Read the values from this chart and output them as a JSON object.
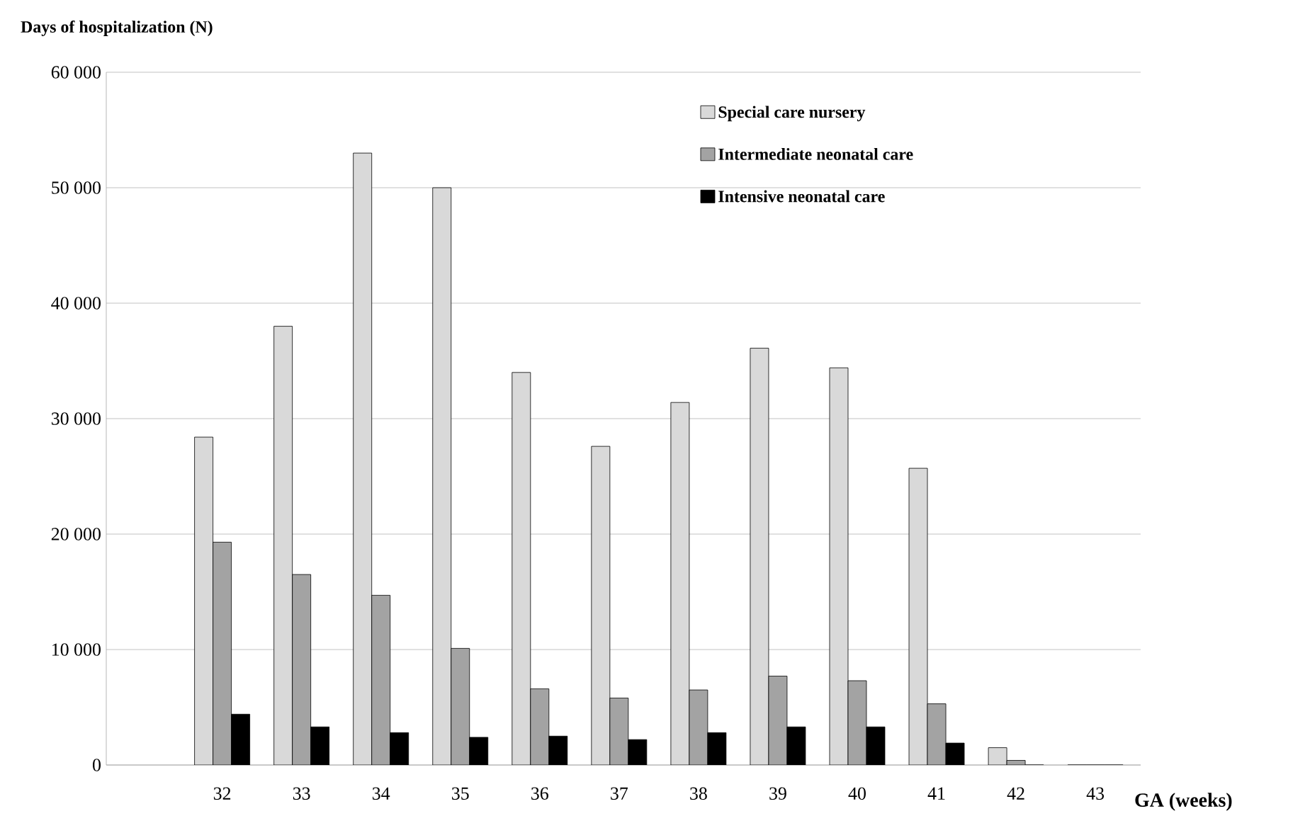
{
  "chart_data": {
    "type": "bar",
    "xlabel": "GA (weeks)",
    "ylabel": "Days of hospitalization (N)",
    "categories": [
      "32",
      "33",
      "34",
      "35",
      "36",
      "37",
      "38",
      "39",
      "40",
      "41",
      "42",
      "43"
    ],
    "series": [
      {
        "name": "Special care nursery",
        "color": "#d9d9d9",
        "values": [
          28400,
          38000,
          53000,
          50000,
          34000,
          27600,
          31400,
          36100,
          34400,
          25700,
          1500,
          0
        ]
      },
      {
        "name": "Intermediate neonatal care",
        "color": "#a3a3a3",
        "values": [
          19300,
          16500,
          14700,
          10100,
          6600,
          5800,
          6500,
          7700,
          7300,
          5300,
          400,
          0
        ]
      },
      {
        "name": "Intensive neonatal care",
        "color": "#000000",
        "values": [
          4400,
          3300,
          2800,
          2400,
          2500,
          2200,
          2800,
          3300,
          3300,
          1900,
          0,
          0
        ]
      }
    ],
    "ylim": [
      0,
      60000
    ],
    "yticks": [
      {
        "value": 0,
        "label": "0"
      },
      {
        "value": 10000,
        "label": "10 000"
      },
      {
        "value": 20000,
        "label": "20 000"
      },
      {
        "value": 30000,
        "label": "30 000"
      },
      {
        "value": 40000,
        "label": "40 000"
      },
      {
        "value": 50000,
        "label": "50 000"
      },
      {
        "value": 60000,
        "label": "60 000"
      }
    ],
    "grid": "y",
    "legend": "top right"
  }
}
